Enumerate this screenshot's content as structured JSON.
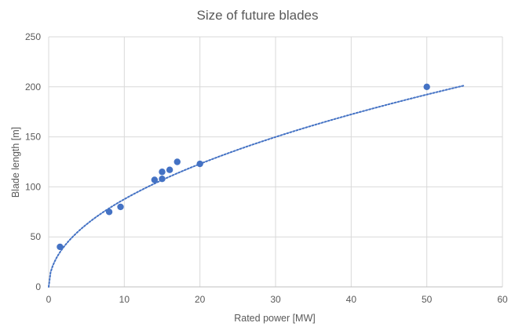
{
  "chart_data": {
    "type": "scatter",
    "title": "Size of future blades",
    "xlabel": "Rated power [MW]",
    "ylabel": "Blade length [m]",
    "xlim": [
      0,
      60
    ],
    "ylim": [
      0,
      250
    ],
    "xticks": [
      0,
      10,
      20,
      30,
      40,
      50,
      60
    ],
    "yticks": [
      0,
      50,
      100,
      150,
      200,
      250
    ],
    "grid": true,
    "legend": "none",
    "marker_color": "#4472C4",
    "trendline_color": "#4472C4",
    "series": [
      {
        "points": [
          {
            "x": 1.5,
            "y": 40
          },
          {
            "x": 8,
            "y": 75
          },
          {
            "x": 9.5,
            "y": 80
          },
          {
            "x": 14,
            "y": 107
          },
          {
            "x": 15,
            "y": 108
          },
          {
            "x": 15,
            "y": 115
          },
          {
            "x": 16,
            "y": 117
          },
          {
            "x": 17,
            "y": 125
          },
          {
            "x": 20,
            "y": 123
          },
          {
            "x": 50,
            "y": 200
          }
        ]
      }
    ],
    "trendline": {
      "type": "power",
      "style": "dotted",
      "x_range": [
        0,
        55
      ],
      "coefficient": 28.5,
      "exponent": 0.488
    }
  }
}
